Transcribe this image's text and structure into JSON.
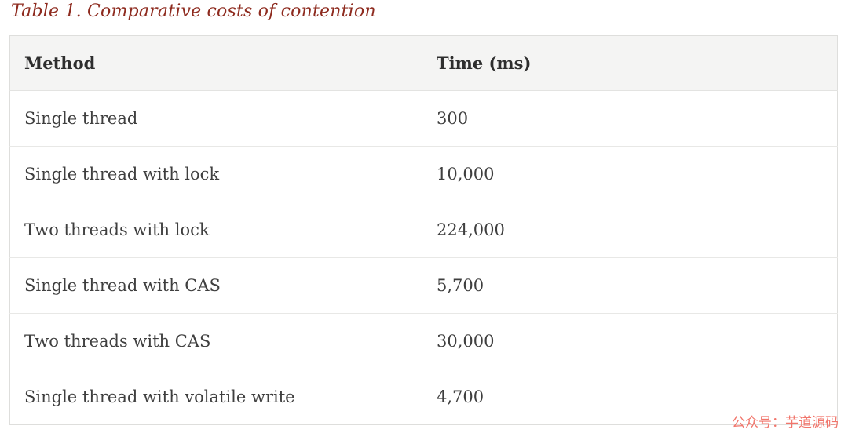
{
  "caption": "Table 1. Comparative costs of contention",
  "table": {
    "columns": {
      "method": "Method",
      "time": "Time (ms)"
    },
    "rows": [
      {
        "method": "Single thread",
        "time": "300"
      },
      {
        "method": "Single thread with lock",
        "time": "10,000"
      },
      {
        "method": "Two threads with lock",
        "time": "224,000"
      },
      {
        "method": "Single thread with CAS",
        "time": "5,700"
      },
      {
        "method": "Two threads with CAS",
        "time": "30,000"
      },
      {
        "method": "Single thread with volatile write",
        "time": "4,700"
      }
    ]
  },
  "chart_data": {
    "type": "table",
    "title": "Table 1. Comparative costs of contention",
    "categories": [
      "Single thread",
      "Single thread with lock",
      "Two threads with lock",
      "Single thread with CAS",
      "Two threads with CAS",
      "Single thread with volatile write"
    ],
    "values": [
      300,
      10000,
      224000,
      5700,
      30000,
      4700
    ],
    "xlabel": "Method",
    "ylabel": "Time (ms)"
  },
  "watermark": "公众号：芋道源码",
  "colors": {
    "caption_text": "#8e2b1f",
    "header_bg": "#f4f4f3",
    "header_text": "#2e2e2e",
    "body_text": "#3f3f3f",
    "border": "#e3e3e1",
    "watermark_text": "#f1756b"
  }
}
